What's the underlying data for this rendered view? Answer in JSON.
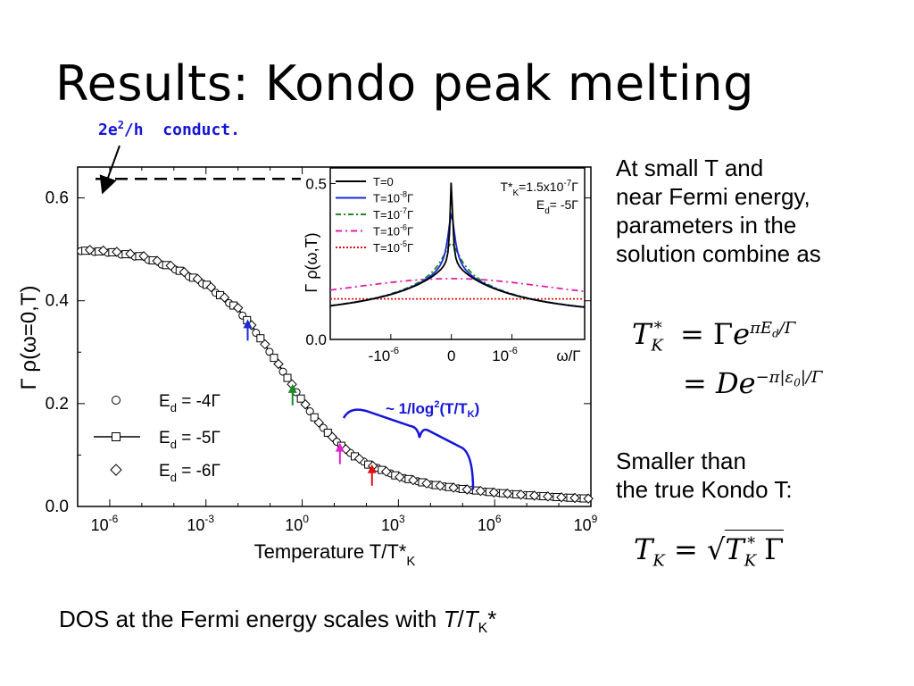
{
  "slide": {
    "title": "Results: Kondo peak melting",
    "note_conduct": "2e²/h  conduct.",
    "paragraph1": [
      "At small T and",
      "near Fermi energy,",
      "parameters in the",
      "solution combine as"
    ],
    "paragraph2": [
      "Smaller than",
      "the true Kondo T:"
    ],
    "footer": "DOS at the Fermi energy scales with T/TK*",
    "brace_label": "~ 1/log²(T/TK)"
  },
  "colors": {
    "note": "#1515d8",
    "axis": "#000000",
    "blue": "#1a2ad8",
    "green": "#1a8a2a",
    "magenta": "#e020d0",
    "red": "#e01010"
  },
  "chart_data": [
    {
      "type": "scatter",
      "xlabel": "Temperature T/T*K",
      "ylabel": "Γ ρ(ω=0,T)",
      "x_scale": "log",
      "xlim": [
        1e-07,
        1000000000.0
      ],
      "ylim": [
        0,
        0.66
      ],
      "x_ticks": [
        "10-6",
        "10-3",
        "100",
        "103",
        "106",
        "109"
      ],
      "y_ticks": [
        "0.0",
        "0.2",
        "0.4",
        "0.6"
      ],
      "reference_line": {
        "label": "2e²/h conduct.",
        "y": 0.637
      },
      "legend": [
        "Ed = -4Γ",
        "Ed = -5Γ",
        "Ed = -6Γ"
      ],
      "x": [
        1e-07,
        1e-06,
        1e-05,
        0.0001,
        0.001,
        0.01,
        0.03,
        0.1,
        0.3,
        1,
        3,
        10,
        30,
        100,
        1000,
        10000.0,
        100000.0,
        1000000.0,
        10000000.0,
        100000000.0,
        1000000000.0
      ],
      "series": [
        {
          "name": "Ed = -4Γ",
          "marker": "circle",
          "values": [
            0.497,
            0.493,
            0.484,
            0.462,
            0.43,
            0.382,
            0.345,
            0.299,
            0.255,
            0.205,
            0.165,
            0.13,
            0.105,
            0.084,
            0.058,
            0.043,
            0.034,
            0.027,
            0.022,
            0.018,
            0.015
          ]
        },
        {
          "name": "Ed = -5Γ",
          "marker": "square",
          "values": [
            0.498,
            0.495,
            0.486,
            0.464,
            0.432,
            0.384,
            0.347,
            0.3,
            0.256,
            0.206,
            0.165,
            0.13,
            0.104,
            0.083,
            0.058,
            0.043,
            0.034,
            0.027,
            0.022,
            0.018,
            0.015
          ]
        },
        {
          "name": "Ed = -6Γ",
          "marker": "diamond",
          "values": [
            0.5,
            0.497,
            0.488,
            0.466,
            0.434,
            0.386,
            0.348,
            0.301,
            0.257,
            0.207,
            0.166,
            0.131,
            0.105,
            0.084,
            0.058,
            0.043,
            0.034,
            0.027,
            0.022,
            0.018,
            0.015
          ]
        }
      ],
      "arrows": [
        {
          "color": "blue",
          "x": 0.02
        },
        {
          "color": "green",
          "x": 0.5
        },
        {
          "color": "magenta",
          "x": 15
        },
        {
          "color": "red",
          "x": 150
        }
      ]
    },
    {
      "type": "line",
      "title": "T*K=1.5x10-7Γ   Ed= -5Γ",
      "xlabel": "ω/Γ",
      "ylabel": "Γ ρ(ω,T)",
      "xlim": [
        -2e-06,
        2.2e-06
      ],
      "ylim": [
        0,
        0.55
      ],
      "x_ticks": [
        "-10-6",
        "0",
        "10-6"
      ],
      "y_ticks": [
        "0.0",
        "0.5"
      ],
      "legend": [
        "T=0",
        "T=10-8Γ",
        "T=10-7Γ",
        "T=10-6Γ",
        "T=10-5Γ"
      ],
      "series": [
        {
          "name": "T=0",
          "color": "#000000",
          "peak": 0.505,
          "width_rel": 0.01
        },
        {
          "name": "T=10-8Γ",
          "color": "#1a2ad8",
          "peak": 0.39,
          "width_rel": 0.03
        },
        {
          "name": "T=10-7Γ",
          "color": "#1a8a2a",
          "peak": 0.3,
          "width_rel": 0.08
        },
        {
          "name": "T=10-6Γ",
          "color": "#e020a0",
          "peak": 0.195,
          "width_rel": 0.6
        },
        {
          "name": "T=10-5Γ",
          "color": "#e01010",
          "peak": 0.13,
          "width_rel": 5
        }
      ]
    }
  ]
}
